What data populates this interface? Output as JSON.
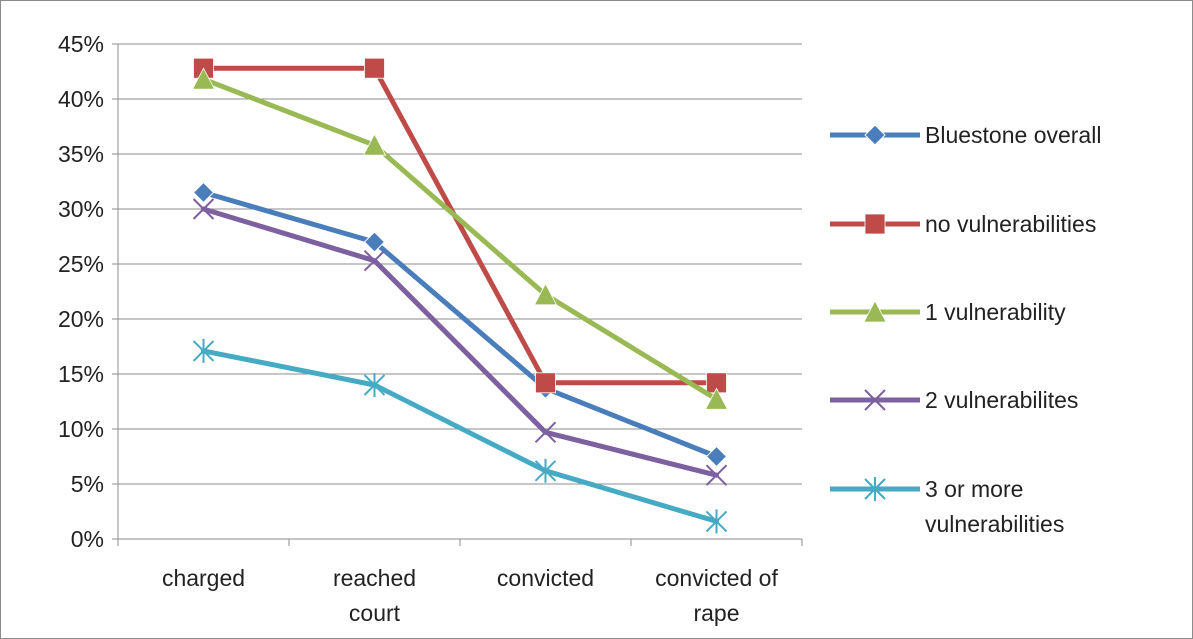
{
  "chart_data": {
    "type": "line",
    "title": "",
    "xlabel": "",
    "ylabel": "",
    "categories": [
      [
        "charged"
      ],
      [
        "reached",
        "court"
      ],
      [
        "convicted"
      ],
      [
        "convicted of",
        "rape"
      ]
    ],
    "yticks": [
      "0%",
      "5%",
      "10%",
      "15%",
      "20%",
      "25%",
      "30%",
      "35%",
      "40%",
      "45%"
    ],
    "ylim": [
      0,
      45
    ],
    "grid": true,
    "legend_position": "right",
    "series": [
      {
        "name": [
          "Bluestone overall"
        ],
        "values": [
          31.5,
          27,
          13.7,
          7.5
        ],
        "color": "#4a7ebb",
        "marker": "diamond"
      },
      {
        "name": [
          "no vulnerabilities"
        ],
        "values": [
          42.8,
          42.8,
          14.2,
          14.2
        ],
        "color": "#be4b48",
        "marker": "square"
      },
      {
        "name": [
          "1 vulnerability"
        ],
        "values": [
          41.8,
          35.8,
          22.2,
          12.7
        ],
        "color": "#98b954",
        "marker": "triangle"
      },
      {
        "name": [
          "2 vulnerabilites"
        ],
        "values": [
          30.0,
          25.3,
          9.7,
          5.8
        ],
        "color": "#7d60a0",
        "marker": "x"
      },
      {
        "name": [
          "3 or more",
          "vulnerabilities"
        ],
        "values": [
          17.1,
          14.0,
          6.2,
          1.6
        ],
        "color": "#46aac5",
        "marker": "star"
      }
    ]
  }
}
